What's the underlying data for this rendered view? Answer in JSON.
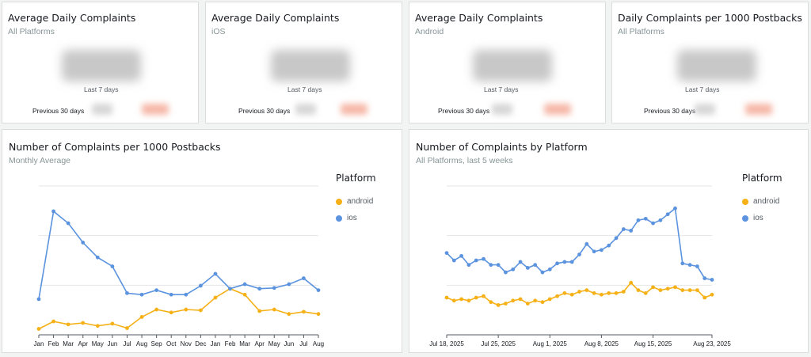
{
  "kpis": [
    {
      "title": "Average Daily Complaints",
      "subtitle": "All Platforms",
      "period": "Last 7 days",
      "previous_label": "Previous 30 days"
    },
    {
      "title": "Average Daily Complaints",
      "subtitle": "iOS",
      "period": "Last 7 days",
      "previous_label": "Previous 30 days"
    },
    {
      "title": "Average Daily Complaints",
      "subtitle": "Android",
      "period": "Last 7 days",
      "previous_label": "Previous 30 days"
    },
    {
      "title": "Daily Complaints per 1000 Postbacks",
      "subtitle": "All Platforms",
      "period": "Last 7 days",
      "previous_label": "Previous 30 days"
    }
  ],
  "colors": {
    "android": "#f5b117",
    "ios": "#5b93df",
    "grid": "#e6e6e6",
    "axis": "#545b64"
  },
  "chart_data": [
    {
      "type": "line",
      "title": "Number of Complaints per 1000 Postbacks",
      "subtitle": "Monthly Average",
      "legend_title": "Platform",
      "legend_position": "right",
      "grid": true,
      "ylim": [
        0,
        100
      ],
      "categories": [
        "Jan",
        "Feb",
        "Mar",
        "Apr",
        "May",
        "Jun",
        "Jul",
        "Aug",
        "Sep",
        "Oct",
        "Nov",
        "Dec",
        "Jan",
        "Feb",
        "Mar",
        "Apr",
        "May",
        "Jun",
        "Jul",
        "Aug"
      ],
      "series": [
        {
          "name": "android",
          "values": [
            4,
            9,
            7,
            8,
            6,
            7.5,
            4.5,
            12,
            17,
            15,
            17,
            16.5,
            25,
            31,
            27,
            16,
            17,
            14,
            15.5,
            14
          ]
        },
        {
          "name": "ios",
          "values": [
            24,
            83,
            75,
            62,
            52,
            46,
            28,
            27,
            30,
            27,
            27,
            33,
            41,
            31,
            34,
            31,
            31.5,
            34,
            38,
            30
          ]
        }
      ]
    },
    {
      "type": "line",
      "title": "Number of Complaints by Platform",
      "subtitle": "All Platforms, last 5 weeks",
      "legend_title": "Platform",
      "legend_position": "right",
      "grid": true,
      "ylim": [
        0,
        100
      ],
      "x_tick_labels": [
        "Jul 18, 2025",
        "Jul 25, 2025",
        "Aug 1, 2025",
        "Aug 8, 2025",
        "Aug 15, 2025",
        "Aug 23, 2025"
      ],
      "x_tick_index": [
        0,
        7,
        14,
        21,
        28,
        36
      ],
      "series": [
        {
          "name": "android",
          "values": [
            25,
            23,
            24,
            23,
            25,
            26,
            22,
            20,
            21,
            23,
            24,
            21,
            23,
            22,
            24,
            26,
            28,
            27,
            29,
            30,
            28,
            27,
            28,
            28,
            29,
            35,
            30,
            28,
            32,
            30,
            31,
            32,
            30,
            30,
            30,
            25,
            27
          ]
        },
        {
          "name": "ios",
          "values": [
            55,
            50,
            53,
            47,
            50,
            51,
            47,
            47,
            42,
            44,
            49,
            45,
            47,
            42,
            44,
            48,
            49,
            49,
            54,
            61,
            56,
            57,
            60,
            65,
            71,
            70,
            77,
            78,
            75,
            77,
            81,
            85,
            48,
            47,
            46,
            38,
            37
          ]
        }
      ]
    }
  ]
}
